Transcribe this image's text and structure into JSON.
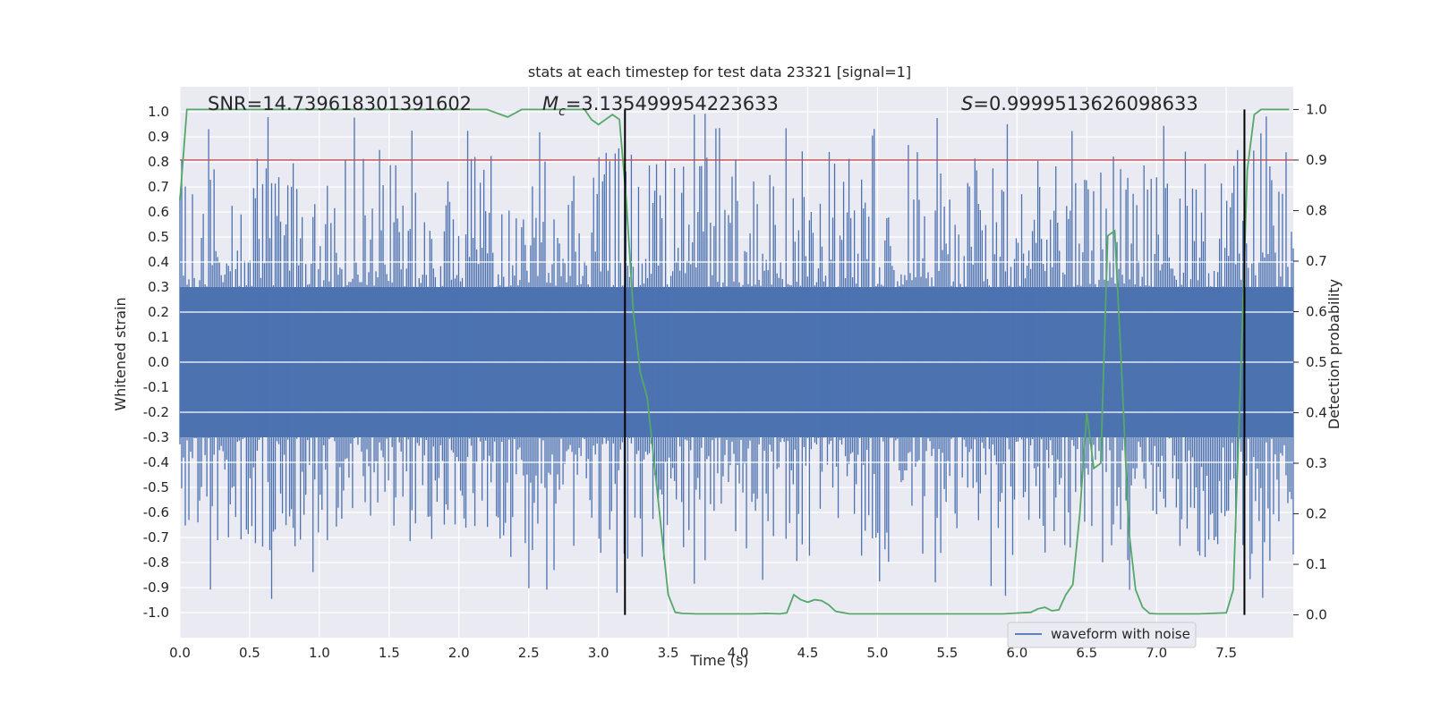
{
  "chart_data": {
    "type": "line",
    "title": "stats at each timestep for test data 23321 [signal=1]",
    "xlabel": "Time (s)",
    "ylabel_left": "Whitened strain",
    "ylabel_right": "Detection probability",
    "xlim": [
      0.0,
      7.98
    ],
    "ylim_left": [
      -1.1,
      1.1
    ],
    "ylim_right": [
      -0.045,
      1.045
    ],
    "x_ticks": [
      0.0,
      0.5,
      1.0,
      1.5,
      2.0,
      2.5,
      3.0,
      3.5,
      4.0,
      4.5,
      5.0,
      5.5,
      6.0,
      6.5,
      7.0,
      7.5
    ],
    "x_tick_labels": [
      "0.0",
      "0.5",
      "1.0",
      "1.5",
      "2.0",
      "2.5",
      "3.0",
      "3.5",
      "4.0",
      "4.5",
      "5.0",
      "5.5",
      "6.0",
      "6.5",
      "7.0",
      "7.5"
    ],
    "y_left_ticks": [
      1.0,
      0.9,
      0.8,
      0.7,
      0.6,
      0.5,
      0.4,
      0.3,
      0.2,
      0.1,
      0.0,
      -0.1,
      -0.2,
      -0.3,
      -0.4,
      -0.5,
      -0.6,
      -0.7,
      -0.8,
      -0.9,
      -1.0
    ],
    "y_left_tick_labels": [
      "1.0",
      "0.9",
      "0.8",
      "0.7",
      "0.6",
      "0.5",
      "0.4",
      "0.3",
      "0.2",
      "0.1",
      "0.0",
      "-0.1",
      "-0.2",
      "-0.3",
      "-0.4",
      "-0.5",
      "-0.6",
      "-0.7",
      "-0.8",
      "-0.9",
      "-1.0"
    ],
    "y_right_ticks": [
      1.0,
      0.9,
      0.8,
      0.7,
      0.6,
      0.5,
      0.4,
      0.3,
      0.2,
      0.1,
      0.0
    ],
    "y_right_tick_labels": [
      "1.0",
      "0.9",
      "0.8",
      "0.7",
      "0.6",
      "0.5",
      "0.4",
      "0.3",
      "0.2",
      "0.1",
      "0.0"
    ],
    "grid": true,
    "legend": {
      "entries": [
        "waveform with noise"
      ],
      "placement": "lower-right"
    },
    "annotations": {
      "snr": "SNR=14.739618301391602",
      "mc_symbol": "M",
      "mc_subscript": "c",
      "mc_value": "=3.135499954223633",
      "s_symbol": "S",
      "s_value": "=0.9999513626098633"
    },
    "vertical_lines": [
      3.19,
      7.63
    ],
    "threshold": {
      "axis": "right",
      "value": 0.9
    },
    "waveform": {
      "name": "waveform with noise",
      "core_amplitude": 0.3,
      "peak_range": [
        -0.95,
        1.0
      ]
    },
    "probability": {
      "x": [
        0.0,
        0.05,
        0.1,
        0.2,
        0.4,
        0.8,
        1.2,
        1.6,
        2.0,
        2.1,
        2.2,
        2.3,
        2.35,
        2.45,
        2.6,
        2.8,
        2.9,
        2.95,
        3.0,
        3.05,
        3.1,
        3.15,
        3.2,
        3.25,
        3.3,
        3.35,
        3.4,
        3.45,
        3.5,
        3.55,
        3.6,
        3.7,
        3.9,
        4.1,
        4.2,
        4.3,
        4.35,
        4.4,
        4.45,
        4.5,
        4.55,
        4.6,
        4.65,
        4.7,
        4.8,
        4.9,
        5.1,
        5.5,
        5.9,
        6.1,
        6.15,
        6.2,
        6.25,
        6.3,
        6.35,
        6.4,
        6.45,
        6.5,
        6.55,
        6.6,
        6.65,
        6.7,
        6.75,
        6.8,
        6.85,
        6.9,
        6.95,
        7.0,
        7.1,
        7.3,
        7.5,
        7.55,
        7.6,
        7.65,
        7.7,
        7.75,
        7.8,
        7.85,
        7.95
      ],
      "y": [
        0.82,
        1.0,
        1.0,
        1.0,
        1.0,
        1.0,
        1.0,
        1.0,
        1.0,
        1.0,
        1.0,
        0.99,
        0.985,
        1.0,
        1.0,
        1.0,
        1.0,
        0.98,
        0.97,
        0.98,
        0.99,
        0.98,
        0.82,
        0.6,
        0.48,
        0.43,
        0.3,
        0.17,
        0.04,
        0.005,
        0.003,
        0.002,
        0.002,
        0.002,
        0.003,
        0.002,
        0.004,
        0.04,
        0.03,
        0.025,
        0.03,
        0.028,
        0.02,
        0.007,
        0.002,
        0.002,
        0.002,
        0.002,
        0.002,
        0.005,
        0.012,
        0.015,
        0.008,
        0.01,
        0.04,
        0.06,
        0.2,
        0.4,
        0.29,
        0.3,
        0.75,
        0.76,
        0.48,
        0.17,
        0.05,
        0.015,
        0.003,
        0.002,
        0.002,
        0.002,
        0.004,
        0.05,
        0.45,
        0.88,
        0.99,
        1.0,
        1.0,
        1.0,
        1.0
      ]
    },
    "colors": {
      "waveform": "#4c72b0",
      "probability": "#55a868",
      "threshold": "#c44e52",
      "markers": "#000000",
      "plot_bg": "#eaeaf2",
      "grid": "#ffffff"
    }
  }
}
